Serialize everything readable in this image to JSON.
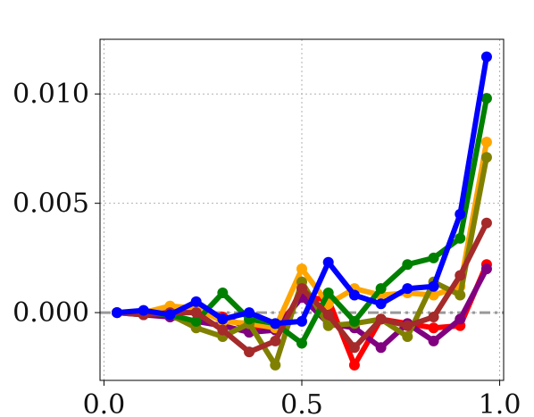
{
  "chart_data": {
    "type": "line",
    "title": "",
    "xlabel": "",
    "ylabel": "",
    "xlim": [
      -0.01,
      1.01
    ],
    "ylim": [
      -0.0031,
      0.0125
    ],
    "x_ticks": [
      0.0,
      0.5,
      1.0
    ],
    "x_tick_labels": [
      "0.0",
      "0.5",
      "1.0"
    ],
    "y_ticks": [
      0.0,
      0.005,
      0.01
    ],
    "y_tick_labels": [
      "0.000",
      "0.005",
      "0.010"
    ],
    "grid": true,
    "reference_line": {
      "y": 0.0,
      "style": "dash-dot",
      "color": "#999999"
    },
    "x": [
      0.033,
      0.1,
      0.167,
      0.233,
      0.3,
      0.367,
      0.433,
      0.5,
      0.567,
      0.633,
      0.7,
      0.767,
      0.833,
      0.9,
      0.967
    ],
    "series": [
      {
        "color": "#ff0000",
        "values": [
          0.0,
          0.0,
          0.0002,
          0.0001,
          -0.0002,
          -0.0007,
          -0.0007,
          0.0007,
          0.0006,
          -0.0024,
          -0.0003,
          -0.0005,
          -0.0007,
          -0.0006,
          0.0022
        ]
      },
      {
        "color": "#800080",
        "values": [
          0.0,
          -0.0001,
          -0.0002,
          -0.0004,
          -0.0006,
          -0.0009,
          -0.0008,
          0.0007,
          -0.0005,
          -0.0007,
          -0.0016,
          -0.0005,
          -0.0013,
          -0.0003,
          0.002
        ]
      },
      {
        "color": "#ffa500",
        "values": [
          0.0,
          0.0,
          0.0003,
          0.0002,
          -0.0004,
          -0.0005,
          -0.0007,
          0.002,
          0.0004,
          0.0011,
          0.0008,
          0.0009,
          0.0008,
          0.0012,
          0.0078
        ]
      },
      {
        "color": "#808000",
        "values": [
          0.0,
          0.0,
          -0.0001,
          -0.0007,
          -0.0011,
          -0.0005,
          -0.0024,
          0.0014,
          -0.0006,
          -0.0005,
          -0.0003,
          -0.0011,
          0.0014,
          0.0008,
          0.0071
        ]
      },
      {
        "color": "#008000",
        "values": [
          0.0,
          0.0,
          -0.0001,
          -0.0004,
          0.0009,
          -0.0003,
          -0.0005,
          -0.0014,
          0.0009,
          -0.0004,
          0.0011,
          0.0022,
          0.0025,
          0.0034,
          0.0098
        ]
      },
      {
        "color": "#a52a2a",
        "values": [
          0.0,
          -0.0001,
          0.0,
          0.0,
          -0.0008,
          -0.0018,
          -0.0013,
          0.0011,
          -0.0001,
          -0.0016,
          -0.0003,
          -0.0006,
          -0.0002,
          0.0017,
          0.0041
        ]
      },
      {
        "color": "#0000ff",
        "values": [
          0.0,
          0.0001,
          -0.0001,
          0.0005,
          -0.0003,
          0.0,
          -0.0005,
          -0.0004,
          0.0023,
          0.0008,
          0.0004,
          0.0011,
          0.0012,
          0.0045,
          0.0117
        ]
      }
    ]
  }
}
